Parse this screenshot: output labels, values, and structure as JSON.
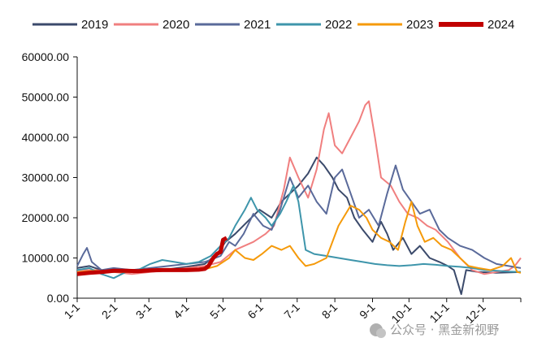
{
  "chart_data": {
    "type": "line",
    "title": "",
    "xlabel": "",
    "ylabel": "",
    "ylim": [
      0,
      60000
    ],
    "yticks": [
      "0.00",
      "10000.00",
      "20000.00",
      "30000.00",
      "40000.00",
      "50000.00",
      "60000.00"
    ],
    "xticks": [
      "1-1",
      "2-1",
      "3-1",
      "4-1",
      "5-1",
      "6-1",
      "7-1",
      "8-1",
      "9-1",
      "10-1",
      "11-1",
      "12-1"
    ],
    "x_day_range": [
      0,
      365
    ],
    "series": [
      {
        "name": "2019",
        "color": "#3b4a6b",
        "width": 2,
        "points": [
          [
            0,
            7500
          ],
          [
            10,
            8000
          ],
          [
            20,
            7000
          ],
          [
            30,
            6500
          ],
          [
            45,
            6800
          ],
          [
            60,
            7000
          ],
          [
            75,
            7200
          ],
          [
            90,
            7800
          ],
          [
            105,
            8500
          ],
          [
            115,
            11000
          ],
          [
            122,
            14000
          ],
          [
            130,
            16000
          ],
          [
            140,
            19000
          ],
          [
            150,
            22000
          ],
          [
            160,
            20000
          ],
          [
            168,
            24000
          ],
          [
            175,
            26000
          ],
          [
            182,
            28000
          ],
          [
            190,
            31000
          ],
          [
            197,
            35000
          ],
          [
            203,
            33000
          ],
          [
            210,
            30000
          ],
          [
            215,
            27000
          ],
          [
            222,
            25000
          ],
          [
            228,
            20000
          ],
          [
            235,
            17000
          ],
          [
            243,
            14000
          ],
          [
            250,
            19000
          ],
          [
            255,
            16000
          ],
          [
            260,
            12000
          ],
          [
            268,
            15000
          ],
          [
            275,
            11000
          ],
          [
            282,
            13000
          ],
          [
            290,
            10000
          ],
          [
            298,
            9000
          ],
          [
            305,
            8000
          ],
          [
            310,
            7000
          ],
          [
            316,
            1000
          ],
          [
            320,
            7000
          ],
          [
            330,
            6500
          ],
          [
            345,
            6300
          ],
          [
            365,
            6500
          ]
        ]
      },
      {
        "name": "2020",
        "color": "#f07f7f",
        "width": 2,
        "points": [
          [
            0,
            7000
          ],
          [
            15,
            7000
          ],
          [
            30,
            6500
          ],
          [
            45,
            6000
          ],
          [
            60,
            6500
          ],
          [
            75,
            7000
          ],
          [
            90,
            7500
          ],
          [
            105,
            8000
          ],
          [
            118,
            9000
          ],
          [
            130,
            12000
          ],
          [
            145,
            14000
          ],
          [
            155,
            16000
          ],
          [
            162,
            18000
          ],
          [
            170,
            27000
          ],
          [
            175,
            35000
          ],
          [
            182,
            30000
          ],
          [
            190,
            25000
          ],
          [
            197,
            32000
          ],
          [
            203,
            42000
          ],
          [
            207,
            46000
          ],
          [
            212,
            38000
          ],
          [
            218,
            36000
          ],
          [
            225,
            40000
          ],
          [
            232,
            44000
          ],
          [
            237,
            48000
          ],
          [
            240,
            49000
          ],
          [
            245,
            40000
          ],
          [
            250,
            30000
          ],
          [
            258,
            28000
          ],
          [
            265,
            24000
          ],
          [
            272,
            21000
          ],
          [
            280,
            20000
          ],
          [
            288,
            18000
          ],
          [
            295,
            17000
          ],
          [
            305,
            14000
          ],
          [
            315,
            10000
          ],
          [
            325,
            7000
          ],
          [
            335,
            6000
          ],
          [
            345,
            6500
          ],
          [
            355,
            7000
          ],
          [
            360,
            8000
          ],
          [
            365,
            10000
          ]
        ]
      },
      {
        "name": "2021",
        "color": "#5a6a9a",
        "width": 2,
        "points": [
          [
            0,
            8000
          ],
          [
            5,
            11000
          ],
          [
            8,
            12500
          ],
          [
            12,
            9000
          ],
          [
            20,
            7000
          ],
          [
            30,
            7500
          ],
          [
            45,
            7000
          ],
          [
            60,
            7500
          ],
          [
            75,
            8000
          ],
          [
            90,
            8500
          ],
          [
            105,
            9000
          ],
          [
            118,
            10500
          ],
          [
            125,
            14000
          ],
          [
            130,
            13000
          ],
          [
            137,
            16000
          ],
          [
            145,
            21000
          ],
          [
            153,
            18000
          ],
          [
            160,
            17000
          ],
          [
            167,
            22000
          ],
          [
            175,
            30000
          ],
          [
            182,
            25000
          ],
          [
            190,
            28000
          ],
          [
            197,
            24000
          ],
          [
            205,
            21000
          ],
          [
            212,
            30000
          ],
          [
            218,
            32000
          ],
          [
            225,
            26000
          ],
          [
            232,
            20000
          ],
          [
            240,
            22000
          ],
          [
            248,
            18000
          ],
          [
            255,
            26000
          ],
          [
            262,
            33000
          ],
          [
            268,
            27000
          ],
          [
            275,
            24000
          ],
          [
            282,
            21000
          ],
          [
            290,
            22000
          ],
          [
            298,
            17000
          ],
          [
            305,
            15000
          ],
          [
            315,
            13000
          ],
          [
            325,
            12000
          ],
          [
            335,
            10000
          ],
          [
            345,
            8500
          ],
          [
            355,
            8000
          ],
          [
            365,
            7500
          ]
        ]
      },
      {
        "name": "2022",
        "color": "#3e95ab",
        "width": 2,
        "points": [
          [
            0,
            7000
          ],
          [
            10,
            7500
          ],
          [
            20,
            6000
          ],
          [
            30,
            5000
          ],
          [
            40,
            6500
          ],
          [
            50,
            7000
          ],
          [
            60,
            8500
          ],
          [
            70,
            9500
          ],
          [
            80,
            9000
          ],
          [
            90,
            8500
          ],
          [
            100,
            9000
          ],
          [
            110,
            10500
          ],
          [
            118,
            13000
          ],
          [
            125,
            15000
          ],
          [
            130,
            18000
          ],
          [
            138,
            22000
          ],
          [
            143,
            25000
          ],
          [
            148,
            22000
          ],
          [
            155,
            20000
          ],
          [
            160,
            18000
          ],
          [
            167,
            21000
          ],
          [
            172,
            24000
          ],
          [
            178,
            28000
          ],
          [
            182,
            24000
          ],
          [
            188,
            12000
          ],
          [
            195,
            11000
          ],
          [
            205,
            10500
          ],
          [
            215,
            10000
          ],
          [
            225,
            9500
          ],
          [
            235,
            9000
          ],
          [
            245,
            8500
          ],
          [
            255,
            8200
          ],
          [
            265,
            8000
          ],
          [
            275,
            8200
          ],
          [
            285,
            8500
          ],
          [
            295,
            8300
          ],
          [
            305,
            8000
          ],
          [
            315,
            7800
          ],
          [
            325,
            7500
          ],
          [
            335,
            7000
          ],
          [
            345,
            6800
          ],
          [
            355,
            6600
          ],
          [
            365,
            6500
          ]
        ]
      },
      {
        "name": "2023",
        "color": "#f59a0a",
        "width": 2,
        "points": [
          [
            0,
            6500
          ],
          [
            15,
            6800
          ],
          [
            30,
            6500
          ],
          [
            45,
            6500
          ],
          [
            60,
            6800
          ],
          [
            75,
            7000
          ],
          [
            90,
            6800
          ],
          [
            105,
            7200
          ],
          [
            115,
            8000
          ],
          [
            125,
            10000
          ],
          [
            130,
            12000
          ],
          [
            138,
            10000
          ],
          [
            145,
            9500
          ],
          [
            152,
            11000
          ],
          [
            160,
            13000
          ],
          [
            168,
            12000
          ],
          [
            175,
            13000
          ],
          [
            182,
            10000
          ],
          [
            188,
            8000
          ],
          [
            195,
            8500
          ],
          [
            205,
            10000
          ],
          [
            215,
            18000
          ],
          [
            225,
            23000
          ],
          [
            232,
            22000
          ],
          [
            238,
            20000
          ],
          [
            243,
            17000
          ],
          [
            250,
            15000
          ],
          [
            257,
            14000
          ],
          [
            264,
            12000
          ],
          [
            270,
            19000
          ],
          [
            275,
            24000
          ],
          [
            280,
            18000
          ],
          [
            286,
            14000
          ],
          [
            293,
            15000
          ],
          [
            300,
            13000
          ],
          [
            308,
            12000
          ],
          [
            315,
            10000
          ],
          [
            322,
            8000
          ],
          [
            330,
            7500
          ],
          [
            340,
            7000
          ],
          [
            350,
            8000
          ],
          [
            357,
            10000
          ],
          [
            362,
            6500
          ],
          [
            365,
            6300
          ]
        ]
      },
      {
        "name": "2024",
        "color": "#c00000",
        "width": 5,
        "points": [
          [
            0,
            6000
          ],
          [
            10,
            6300
          ],
          [
            20,
            6500
          ],
          [
            30,
            6800
          ],
          [
            40,
            6800
          ],
          [
            50,
            6700
          ],
          [
            60,
            6900
          ],
          [
            70,
            7000
          ],
          [
            80,
            7000
          ],
          [
            90,
            7000
          ],
          [
            100,
            7100
          ],
          [
            105,
            7300
          ],
          [
            108,
            8000
          ],
          [
            112,
            10000
          ],
          [
            115,
            11000
          ],
          [
            118,
            11500
          ],
          [
            120,
            14500
          ],
          [
            123,
            15000
          ]
        ]
      }
    ]
  },
  "watermark": {
    "text": "公众号 · 黑金新视野"
  }
}
